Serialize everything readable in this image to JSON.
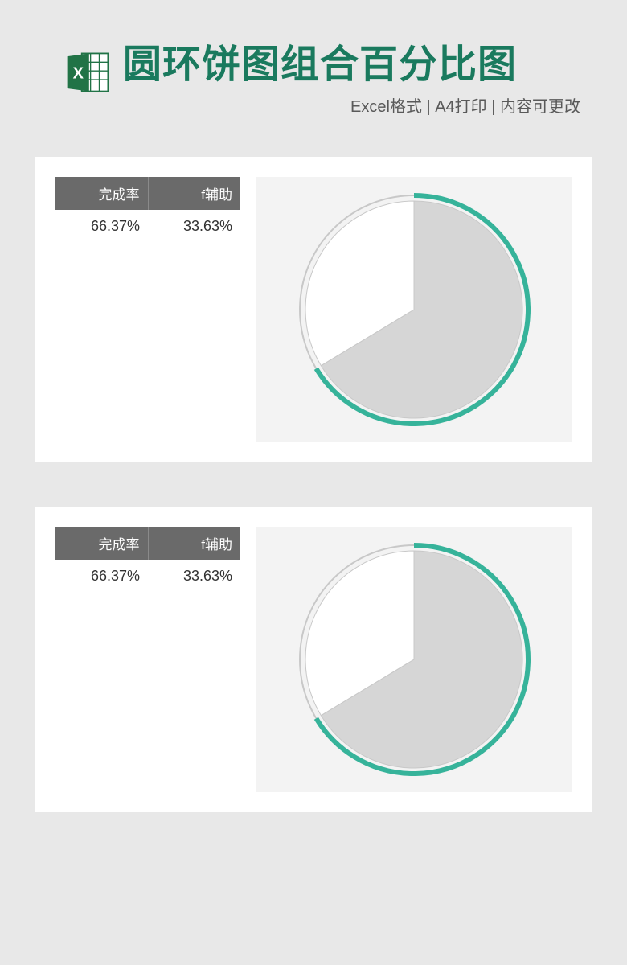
{
  "header": {
    "title": "圆环饼图组合百分比图",
    "subtitle": "Excel格式 | A4打印 | 内容可更改",
    "title_color": "#1a7a5e",
    "subtitle_color": "#595959",
    "title_fontsize": 48,
    "subtitle_fontsize": 20,
    "icon": {
      "name": "excel-icon",
      "primary": "#217346",
      "accent": "#ffffff"
    }
  },
  "page_background": "#e8e8e8",
  "panels": [
    {
      "table": {
        "header_bg": "#6a6a6a",
        "header_fg": "#ffffff",
        "cell_fg": "#333333",
        "columns": [
          "完成率",
          "f辅助"
        ],
        "rows": [
          [
            "66.37%",
            "33.63%"
          ]
        ]
      },
      "chart": {
        "type": "donut-pie-combo",
        "background": "#f3f3f3",
        "completion_pct": 66.37,
        "remainder_pct": 33.63,
        "start_angle_deg": 0,
        "direction": "clockwise",
        "ring_color": "#36b39a",
        "ring_width": 6,
        "pie_fill_color": "#d6d6d6",
        "pie_remainder_color": "#ffffff",
        "pie_border_color": "#c8c8c8",
        "outer_radius": 145,
        "inner_radius_ratio": 0.965
      }
    },
    {
      "table": {
        "header_bg": "#6a6a6a",
        "header_fg": "#ffffff",
        "cell_fg": "#333333",
        "columns": [
          "完成率",
          "f辅助"
        ],
        "rows": [
          [
            "66.37%",
            "33.63%"
          ]
        ]
      },
      "chart": {
        "type": "donut-pie-combo",
        "background": "#f3f3f3",
        "completion_pct": 66.37,
        "remainder_pct": 33.63,
        "start_angle_deg": 0,
        "direction": "clockwise",
        "ring_color": "#36b39a",
        "ring_width": 6,
        "pie_fill_color": "#d6d6d6",
        "pie_remainder_color": "#ffffff",
        "pie_border_color": "#c8c8c8",
        "outer_radius": 145,
        "inner_radius_ratio": 0.965
      }
    }
  ]
}
